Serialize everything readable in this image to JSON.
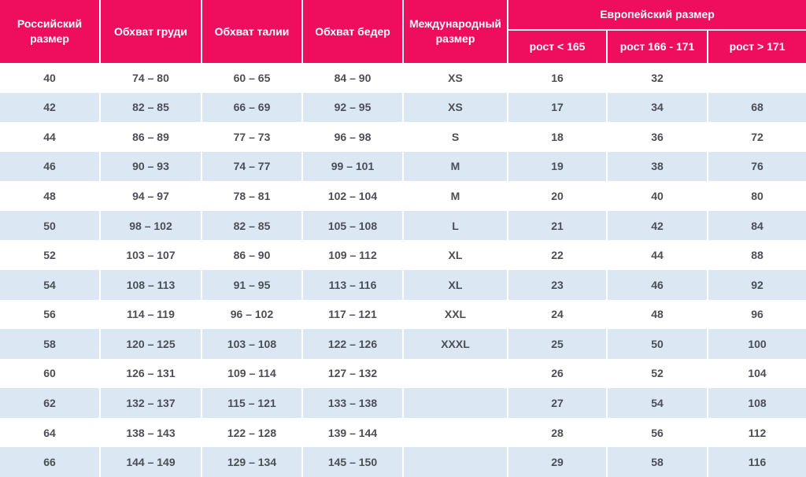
{
  "colors": {
    "header_bg": "#ef0d5e",
    "header_text": "#ffffff",
    "row_even_bg": "#dce7f4",
    "row_odd_bg": "#ffffff",
    "body_text": "#4b4f55",
    "separator": "#ffffff"
  },
  "chart_data": {
    "type": "table",
    "columns": [
      "Российский размер",
      "Обхват груди",
      "Обхват талии",
      "Обхват бедер",
      "Международный размер",
      "Европейский размер"
    ],
    "european_subcolumns": [
      "рост < 165",
      "рост 166 - 171",
      "рост > 171"
    ],
    "rows": [
      [
        "40",
        "74 – 80",
        "60 – 65",
        "84 – 90",
        "XS",
        "16",
        "32",
        ""
      ],
      [
        "42",
        "82 – 85",
        "66 – 69",
        "92 – 95",
        "XS",
        "17",
        "34",
        "68"
      ],
      [
        "44",
        "86 – 89",
        "77 – 73",
        "96 – 98",
        "S",
        "18",
        "36",
        "72"
      ],
      [
        "46",
        "90 – 93",
        "74 – 77",
        "99 – 101",
        "M",
        "19",
        "38",
        "76"
      ],
      [
        "48",
        "94 – 97",
        "78 – 81",
        "102 – 104",
        "M",
        "20",
        "40",
        "80"
      ],
      [
        "50",
        "98 – 102",
        "82 – 85",
        "105 – 108",
        "L",
        "21",
        "42",
        "84"
      ],
      [
        "52",
        "103 – 107",
        "86 – 90",
        "109 – 112",
        "XL",
        "22",
        "44",
        "88"
      ],
      [
        "54",
        "108 – 113",
        "91 – 95",
        "113 – 116",
        "XL",
        "23",
        "46",
        "92"
      ],
      [
        "56",
        "114 – 119",
        "96 – 102",
        "117 – 121",
        "XXL",
        "24",
        "48",
        "96"
      ],
      [
        "58",
        "120 – 125",
        "103 – 108",
        "122 – 126",
        "XXXL",
        "25",
        "50",
        "100"
      ],
      [
        "60",
        "126 – 131",
        "109 – 114",
        "127 – 132",
        "",
        "26",
        "52",
        "104"
      ],
      [
        "62",
        "132 – 137",
        "115 – 121",
        "133 – 138",
        "",
        "27",
        "54",
        "108"
      ],
      [
        "64",
        "138 – 143",
        "122 – 128",
        "139 – 144",
        "",
        "28",
        "56",
        "112"
      ],
      [
        "66",
        "144 – 149",
        "129 – 134",
        "145 – 150",
        "",
        "29",
        "58",
        "116"
      ]
    ]
  }
}
